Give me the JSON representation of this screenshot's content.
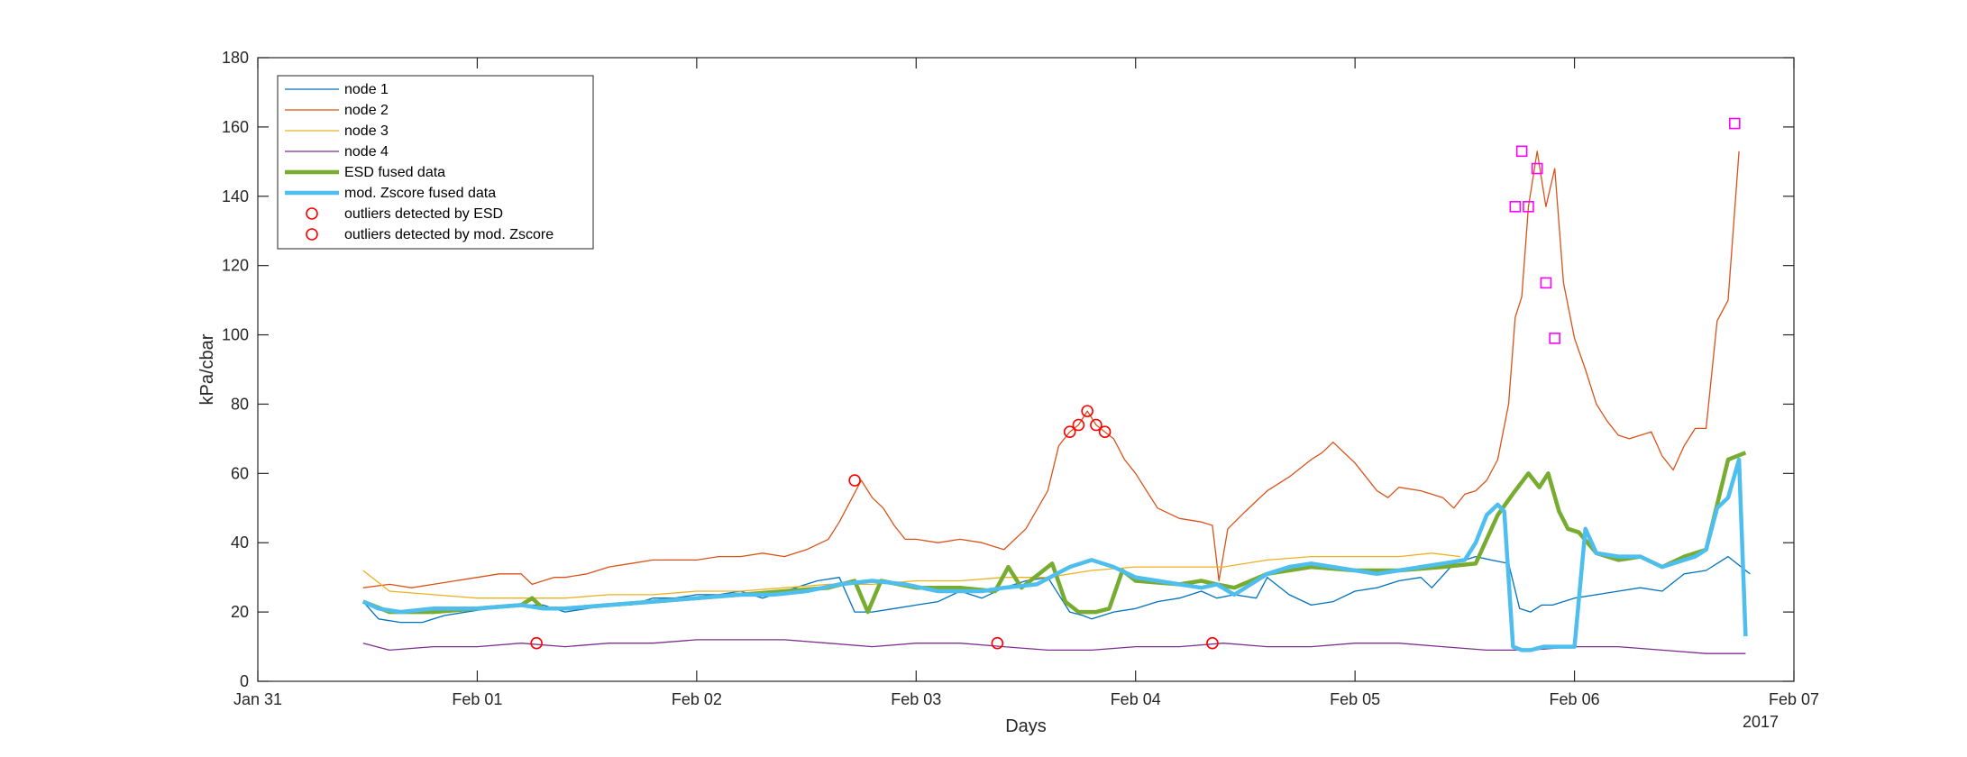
{
  "chart_data": {
    "type": "line",
    "xlabel": "Days",
    "ylabel": "kPa/cbar",
    "year_label": "2017",
    "ylim": [
      0,
      180
    ],
    "xlim_days": [
      0,
      7
    ],
    "x_ticks": [
      {
        "day": 0,
        "label": "Jan 31"
      },
      {
        "day": 1,
        "label": "Feb 01"
      },
      {
        "day": 2,
        "label": "Feb 02"
      },
      {
        "day": 3,
        "label": "Feb 03"
      },
      {
        "day": 4,
        "label": "Feb 04"
      },
      {
        "day": 5,
        "label": "Feb 05"
      },
      {
        "day": 6,
        "label": "Feb 06"
      },
      {
        "day": 7,
        "label": "Feb 07"
      }
    ],
    "y_ticks": [
      {
        "value": 0,
        "label": "0"
      },
      {
        "value": 20,
        "label": "20"
      },
      {
        "value": 40,
        "label": "40"
      },
      {
        "value": 60,
        "label": "60"
      },
      {
        "value": 80,
        "label": "80"
      },
      {
        "value": 100,
        "label": "100"
      },
      {
        "value": 120,
        "label": "120"
      },
      {
        "value": 140,
        "label": "140"
      },
      {
        "value": 160,
        "label": "160"
      },
      {
        "value": 180,
        "label": "180"
      }
    ],
    "grid": false,
    "legend_position": "top-left",
    "series": [
      {
        "name": "node 1",
        "color": "#0072BD",
        "style": "thin",
        "x": [
          0.48,
          0.55,
          0.65,
          0.75,
          0.85,
          0.95,
          1.05,
          1.2,
          1.3,
          1.4,
          1.5,
          1.6,
          1.7,
          1.8,
          1.9,
          2.0,
          2.1,
          2.2,
          2.3,
          2.45,
          2.55,
          2.65,
          2.72,
          2.8,
          2.9,
          3.0,
          3.1,
          3.2,
          3.3,
          3.4,
          3.5,
          3.6,
          3.7,
          3.76,
          3.8,
          3.9,
          4.0,
          4.1,
          4.2,
          4.3,
          4.37,
          4.45,
          4.55,
          4.6,
          4.7,
          4.8,
          4.9,
          5.0,
          5.1,
          5.2,
          5.3,
          5.35,
          5.45,
          5.55,
          5.62,
          5.7,
          5.75,
          5.8,
          5.85,
          5.9,
          6.0,
          6.1,
          6.2,
          6.3,
          6.4,
          6.5,
          6.6,
          6.7,
          6.8
        ],
        "y": [
          23,
          18,
          17,
          17,
          19,
          20,
          21,
          22,
          22,
          20,
          21,
          22,
          22,
          24,
          24,
          25,
          25,
          26,
          24,
          27,
          29,
          30,
          20,
          20,
          21,
          22,
          23,
          26,
          24,
          27,
          29,
          30,
          20,
          19,
          18,
          20,
          21,
          23,
          24,
          26,
          24,
          25,
          24,
          30,
          25,
          22,
          23,
          26,
          27,
          29,
          30,
          27,
          34,
          36,
          35,
          34,
          21,
          20,
          22,
          22,
          24,
          25,
          26,
          27,
          26,
          31,
          32,
          36,
          31
        ]
      },
      {
        "name": "node 2",
        "color": "#D95319",
        "style": "thin",
        "x": [
          0.48,
          0.6,
          0.7,
          0.8,
          0.9,
          1.0,
          1.1,
          1.2,
          1.25,
          1.3,
          1.35,
          1.4,
          1.5,
          1.6,
          1.7,
          1.8,
          1.9,
          2.0,
          2.1,
          2.2,
          2.3,
          2.4,
          2.5,
          2.6,
          2.65,
          2.7,
          2.75,
          2.8,
          2.85,
          2.9,
          2.95,
          3.0,
          3.1,
          3.2,
          3.3,
          3.4,
          3.5,
          3.6,
          3.65,
          3.7,
          3.74,
          3.78,
          3.82,
          3.86,
          3.9,
          3.95,
          4.0,
          4.05,
          4.1,
          4.2,
          4.3,
          4.35,
          4.38,
          4.42,
          4.5,
          4.6,
          4.7,
          4.8,
          4.85,
          4.9,
          5.0,
          5.1,
          5.15,
          5.2,
          5.3,
          5.35,
          5.4,
          5.45,
          5.5,
          5.55,
          5.6,
          5.65,
          5.7,
          5.73,
          5.76,
          5.79,
          5.83,
          5.87,
          5.91,
          5.95,
          6.0,
          6.05,
          6.1,
          6.15,
          6.2,
          6.25,
          6.3,
          6.35,
          6.4,
          6.45,
          6.5,
          6.55,
          6.6,
          6.65,
          6.7,
          6.75
        ],
        "y": [
          27,
          28,
          27,
          28,
          29,
          30,
          31,
          31,
          28,
          29,
          30,
          30,
          31,
          33,
          34,
          35,
          35,
          35,
          36,
          36,
          37,
          36,
          38,
          41,
          46,
          52,
          58,
          53,
          50,
          45,
          41,
          41,
          40,
          41,
          40,
          38,
          44,
          55,
          68,
          72,
          74,
          78,
          74,
          72,
          70,
          64,
          60,
          55,
          50,
          47,
          46,
          45,
          29,
          44,
          49,
          55,
          59,
          64,
          66,
          69,
          63,
          55,
          53,
          56,
          55,
          54,
          53,
          50,
          54,
          55,
          58,
          64,
          80,
          105,
          111,
          137,
          153,
          137,
          148,
          115,
          99,
          90,
          80,
          75,
          71,
          70,
          71,
          72,
          65,
          61,
          68,
          73,
          73,
          104,
          110,
          153
        ]
      },
      {
        "name": "node 3",
        "color": "#EDB120",
        "style": "thin",
        "x": [
          0.48,
          0.6,
          0.8,
          1.0,
          1.2,
          1.4,
          1.6,
          1.8,
          2.0,
          2.2,
          2.4,
          2.6,
          2.8,
          3.0,
          3.2,
          3.4,
          3.6,
          3.8,
          4.0,
          4.2,
          4.4,
          4.6,
          4.8,
          5.0,
          5.2,
          5.35,
          5.48
        ],
        "y": [
          32,
          26,
          25,
          24,
          24,
          24,
          25,
          25,
          26,
          26,
          27,
          28,
          28,
          29,
          29,
          30,
          30,
          32,
          33,
          33,
          33,
          35,
          36,
          36,
          36,
          37,
          36
        ]
      },
      {
        "name": "node 4",
        "color": "#7E2F8E",
        "style": "thin",
        "x": [
          0.48,
          0.6,
          0.8,
          1.0,
          1.2,
          1.4,
          1.6,
          1.8,
          2.0,
          2.2,
          2.4,
          2.6,
          2.8,
          3.0,
          3.2,
          3.4,
          3.6,
          3.8,
          4.0,
          4.2,
          4.4,
          4.6,
          4.8,
          5.0,
          5.2,
          5.4,
          5.6,
          5.8,
          6.0,
          6.2,
          6.4,
          6.6,
          6.78
        ],
        "y": [
          11,
          9,
          10,
          10,
          11,
          10,
          11,
          11,
          12,
          12,
          12,
          11,
          10,
          11,
          11,
          10,
          9,
          9,
          10,
          10,
          11,
          10,
          10,
          11,
          11,
          10,
          9,
          9,
          10,
          10,
          9,
          8,
          8
        ]
      },
      {
        "name": "ESD fused data",
        "color": "#77AC30",
        "style": "thick",
        "x": [
          0.48,
          0.6,
          0.8,
          1.0,
          1.2,
          1.25,
          1.3,
          1.4,
          1.6,
          1.8,
          2.0,
          2.2,
          2.4,
          2.6,
          2.72,
          2.78,
          2.84,
          3.0,
          3.2,
          3.36,
          3.42,
          3.48,
          3.62,
          3.68,
          3.74,
          3.82,
          3.88,
          3.94,
          4.0,
          4.2,
          4.3,
          4.37,
          4.45,
          4.6,
          4.8,
          5.0,
          5.2,
          5.4,
          5.55,
          5.65,
          5.73,
          5.79,
          5.84,
          5.88,
          5.93,
          5.97,
          6.02,
          6.1,
          6.2,
          6.3,
          6.4,
          6.5,
          6.6,
          6.7,
          6.78
        ],
        "y": [
          23,
          20,
          20,
          21,
          22,
          24,
          21,
          21,
          22,
          23,
          24,
          25,
          26,
          27,
          29,
          20,
          29,
          27,
          27,
          26,
          33,
          27,
          34,
          23,
          20,
          20,
          21,
          32,
          29,
          28,
          29,
          28,
          27,
          31,
          33,
          32,
          32,
          33,
          34,
          48,
          55,
          60,
          56,
          60,
          49,
          44,
          43,
          37,
          35,
          36,
          33,
          36,
          38,
          64,
          66
        ]
      },
      {
        "name": "mod. Zscore fused data",
        "color": "#4DBEEE",
        "style": "thick",
        "x": [
          0.48,
          0.55,
          0.65,
          0.8,
          1.0,
          1.2,
          1.3,
          1.4,
          1.6,
          1.8,
          2.0,
          2.2,
          2.35,
          2.5,
          2.65,
          2.8,
          2.95,
          3.1,
          3.3,
          3.4,
          3.55,
          3.7,
          3.8,
          3.9,
          4.0,
          4.1,
          4.2,
          4.3,
          4.37,
          4.45,
          4.6,
          4.7,
          4.8,
          4.9,
          5.0,
          5.1,
          5.2,
          5.3,
          5.4,
          5.5,
          5.55,
          5.6,
          5.65,
          5.68,
          5.72,
          5.76,
          5.8,
          5.86,
          5.93,
          6.0,
          6.05,
          6.1,
          6.2,
          6.3,
          6.4,
          6.5,
          6.55,
          6.6,
          6.65,
          6.7,
          6.75,
          6.78
        ],
        "y": [
          23,
          21,
          20,
          21,
          21,
          22,
          21,
          21,
          22,
          23,
          24,
          25,
          25,
          26,
          28,
          29,
          28,
          26,
          26,
          27,
          28,
          33,
          35,
          33,
          30,
          29,
          28,
          27,
          28,
          25,
          31,
          33,
          34,
          33,
          32,
          31,
          32,
          33,
          34,
          35,
          40,
          48,
          51,
          49,
          10,
          9,
          9,
          10,
          10,
          10,
          44,
          37,
          36,
          36,
          33,
          35,
          36,
          38,
          50,
          53,
          64,
          13
        ]
      }
    ],
    "outliers_esd": {
      "name": "outliers detected by ESD",
      "color": "#FF0000",
      "marker": "circle",
      "x": [
        1.27,
        2.72,
        3.37,
        3.7,
        3.74,
        3.78,
        3.82,
        3.86,
        4.35
      ],
      "y": [
        11,
        58,
        11,
        72,
        74,
        78,
        74,
        72,
        11
      ]
    },
    "outliers_zscore": {
      "name": "outliers detected by mod. Zscore",
      "color": "#FF00FF",
      "legend_color": "#FF0000",
      "marker": "square",
      "x": [
        5.73,
        5.76,
        5.79,
        5.83,
        5.87,
        5.91,
        6.73
      ],
      "y": [
        137,
        153,
        137,
        148,
        115,
        99,
        161
      ]
    },
    "legend": [
      {
        "label": "node 1",
        "color": "#0072BD",
        "kind": "thin"
      },
      {
        "label": "node 2",
        "color": "#D95319",
        "kind": "thin"
      },
      {
        "label": "node 3",
        "color": "#EDB120",
        "kind": "thin"
      },
      {
        "label": "node 4",
        "color": "#7E2F8E",
        "kind": "thin"
      },
      {
        "label": "ESD fused data",
        "color": "#77AC30",
        "kind": "thick"
      },
      {
        "label": "mod. Zscore fused data",
        "color": "#4DBEEE",
        "kind": "thick"
      },
      {
        "label": "outliers detected by ESD",
        "color": "#FF0000",
        "kind": "circle"
      },
      {
        "label": "outliers detected by mod. Zscore",
        "color": "#FF0000",
        "kind": "circle"
      }
    ]
  }
}
